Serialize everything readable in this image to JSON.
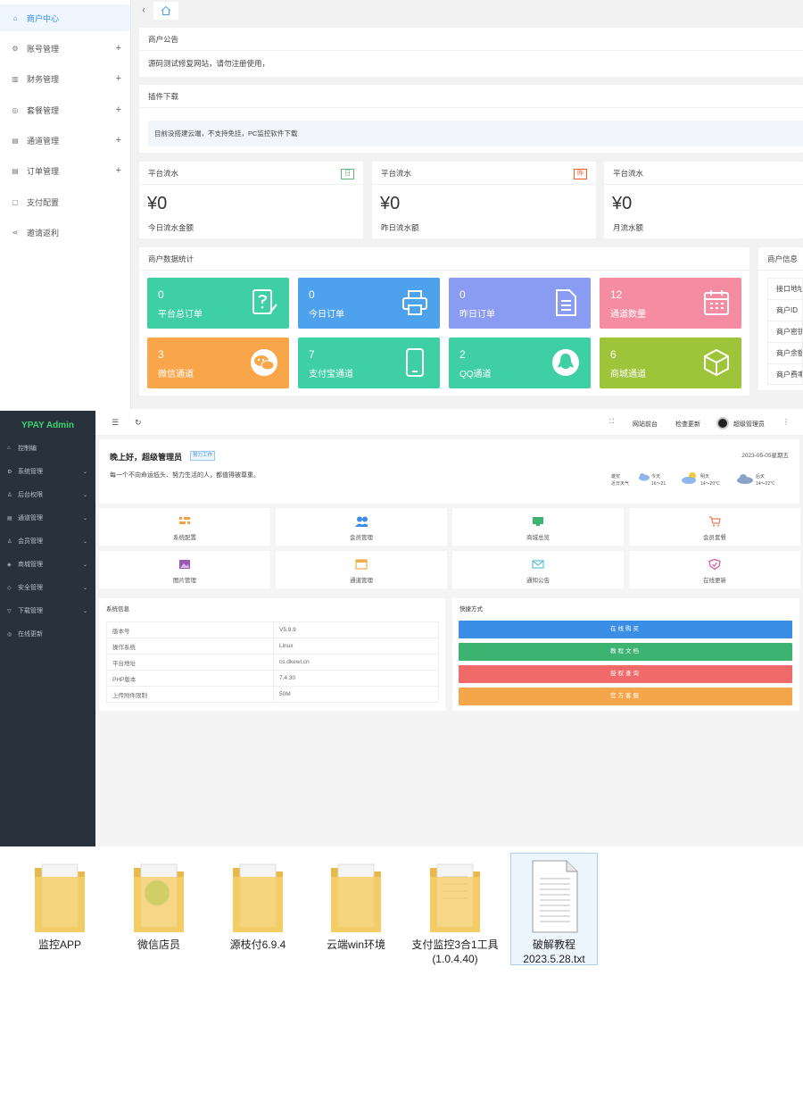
{
  "panel1": {
    "sidebar": [
      {
        "label": "商户中心",
        "icon": "home-icon",
        "active": true
      },
      {
        "label": "账号管理",
        "icon": "gear-icon",
        "plus": "+"
      },
      {
        "label": "财务管理",
        "icon": "wallet-icon",
        "plus": "+"
      },
      {
        "label": "套餐管理",
        "icon": "box-icon",
        "plus": "+"
      },
      {
        "label": "通道管理",
        "icon": "channel-icon",
        "plus": "+"
      },
      {
        "label": "订单管理",
        "icon": "order-icon",
        "plus": "+"
      },
      {
        "label": "支付配置",
        "icon": "config-icon"
      },
      {
        "label": "邀请返利",
        "icon": "share-icon"
      }
    ],
    "announcement": {
      "title": "商户公告",
      "text": "源码测试修复网站，请勿注册使用，"
    },
    "plugin": {
      "title": "插件下载",
      "text": "目前没搭建云端，不支持免挂，PC监控软件下载"
    },
    "flows": [
      {
        "title": "平台流水",
        "badge": "日",
        "badge_color": "#5fb878",
        "value": "¥0",
        "label": "今日流水金额"
      },
      {
        "title": "平台流水",
        "badge": "昨",
        "badge_color": "#ff5722",
        "value": "¥0",
        "label": "昨日流水额"
      },
      {
        "title": "平台流水",
        "badge": "",
        "value": "¥0",
        "label": "月流水额"
      }
    ],
    "stats": {
      "title": "商户数据统计",
      "tiles": [
        {
          "num": "0",
          "label": "平台总订单",
          "color": "#3ecfa5",
          "icon": "question-note-icon"
        },
        {
          "num": "0",
          "label": "今日订单",
          "color": "#4ea1ec",
          "icon": "printer-icon"
        },
        {
          "num": "0",
          "label": "昨日订单",
          "color": "#8a9bf2",
          "icon": "document-icon"
        },
        {
          "num": "12",
          "label": "通道数量",
          "color": "#f58ca2",
          "icon": "calendar-icon"
        },
        {
          "num": "3",
          "label": "微信通道",
          "color": "#f9a64a",
          "icon": "wechat-icon"
        },
        {
          "num": "7",
          "label": "支付宝通道",
          "color": "#3ecfa5",
          "icon": "phone-icon"
        },
        {
          "num": "2",
          "label": "QQ通道",
          "color": "#3ecfa5",
          "icon": "qq-icon"
        },
        {
          "num": "6",
          "label": "商城通道",
          "color": "#9ec43a",
          "icon": "cube-icon"
        }
      ]
    },
    "merchant_info": {
      "title": "商户信息",
      "rows": [
        "接口地址",
        "商户ID",
        "商户密钥",
        "商户余额",
        "商户费率"
      ]
    }
  },
  "panel2": {
    "brand": "YPAY Admin",
    "nav": [
      {
        "label": "控制编",
        "icon": "home-icon"
      },
      {
        "label": "系统管理",
        "icon": "gear-icon",
        "chev": true
      },
      {
        "label": "后台权限",
        "icon": "user-icon",
        "chev": true
      },
      {
        "label": "通道管理",
        "icon": "channel-icon",
        "chev": true
      },
      {
        "label": "会员管理",
        "icon": "user-icon",
        "chev": true
      },
      {
        "label": "商城管理",
        "icon": "shop-icon",
        "chev": true
      },
      {
        "label": "安全管理",
        "icon": "shield-icon",
        "chev": true
      },
      {
        "label": "下载管理",
        "icon": "download-icon",
        "chev": true
      },
      {
        "label": "在线更新",
        "icon": "update-icon"
      }
    ],
    "topbar": {
      "site": "网站前台",
      "check": "检查更新",
      "user": "超级管理员"
    },
    "greeting": {
      "title": "晚上好，超级管理员",
      "badge": "努力工作",
      "motto": "每一个不向命运低头、努力生活的人，都值得被尊重。",
      "date": "2023-05-05星期五"
    },
    "weather": [
      {
        "top": "雄安",
        "bottom": "近日天气"
      },
      {
        "top": "今天",
        "bottom": "16～21"
      },
      {
        "top": "明天",
        "bottom": "14～20℃"
      },
      {
        "top": "后天",
        "bottom": "14～22℃"
      }
    ],
    "quick_tiles": [
      {
        "label": "系统配置",
        "color": "#f5a342",
        "icon": "sliders-icon"
      },
      {
        "label": "会员管理",
        "color": "#3a8ee6",
        "icon": "users-icon"
      },
      {
        "label": "商城总览",
        "color": "#3cb371",
        "icon": "monitor-icon"
      },
      {
        "label": "会员套餐",
        "color": "#f07a53",
        "icon": "cart-icon"
      },
      {
        "label": "图片管理",
        "color": "#9b59b6",
        "icon": "image-icon"
      },
      {
        "label": "通道管理",
        "color": "#f0ad4e",
        "icon": "window-icon"
      },
      {
        "label": "通知公告",
        "color": "#5bc0de",
        "icon": "mail-icon"
      },
      {
        "label": "在线更新",
        "color": "#e0529b",
        "icon": "shield-check-icon"
      }
    ],
    "sysinfo": {
      "title": "系统信息",
      "rows": [
        [
          "版本号",
          "V5.9.9"
        ],
        [
          "操作系统",
          "Linux"
        ],
        [
          "平台地址",
          "cs.dkewl.cn"
        ],
        [
          "PHP版本",
          "7.4.30"
        ],
        [
          "上传附件限制",
          "50M"
        ]
      ]
    },
    "shortcuts": {
      "title": "快捷方式",
      "buttons": [
        {
          "label": "在线购买",
          "color": "#3a8ee6"
        },
        {
          "label": "教程文档",
          "color": "#3cb371"
        },
        {
          "label": "授权查询",
          "color": "#f06a6a"
        },
        {
          "label": "官方客服",
          "color": "#f5a54a"
        }
      ]
    }
  },
  "panel3": {
    "files": [
      {
        "name": "监控APP",
        "icon": "folder-icon"
      },
      {
        "name": "微信店员",
        "icon": "folder-icon"
      },
      {
        "name": "源枝付6.9.4",
        "icon": "folder-icon"
      },
      {
        "name": "云端win环境",
        "icon": "folder-icon"
      },
      {
        "name": "支付监控3合1工具(1.0.4.40)",
        "icon": "folder-icon"
      },
      {
        "name": "破解教程2023.5.28.txt",
        "icon": "text-file-icon"
      }
    ]
  }
}
